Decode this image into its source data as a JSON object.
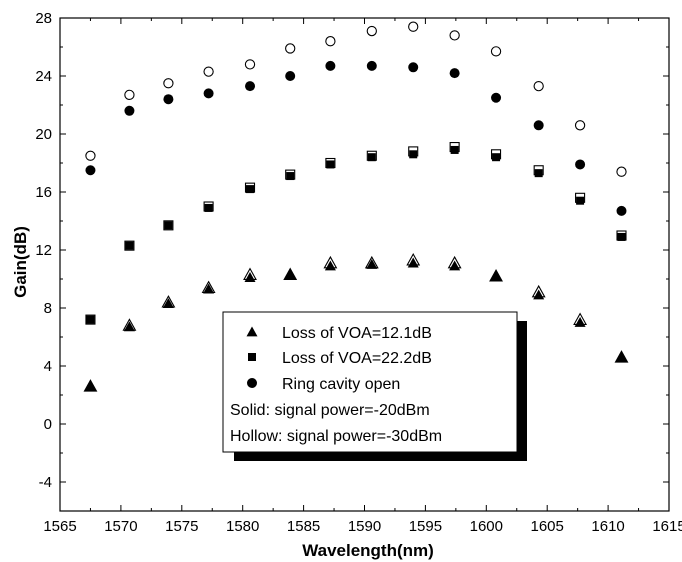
{
  "chart_data": {
    "type": "scatter",
    "xlabel": "Wavelength(nm)",
    "ylabel": "Gain(dB)",
    "xlim": [
      1565,
      1615
    ],
    "ylim": [
      -6,
      28
    ],
    "xticks": [
      1565,
      1570,
      1575,
      1580,
      1585,
      1590,
      1595,
      1600,
      1605,
      1610,
      1615
    ],
    "yticks": [
      -4,
      0,
      4,
      8,
      12,
      16,
      20,
      24,
      28
    ],
    "grid": false,
    "legend_position": "lower-center",
    "x": [
      1567.5,
      1570.7,
      1573.9,
      1577.2,
      1580.6,
      1583.9,
      1587.2,
      1590.6,
      1594.0,
      1597.4,
      1600.8,
      1604.3,
      1607.7,
      1611.1
    ],
    "series": [
      {
        "marker": "triangle",
        "fill": "solid",
        "values": [
          2.6,
          6.7,
          8.3,
          9.3,
          10.1,
          10.3,
          10.9,
          11.0,
          11.1,
          10.9,
          10.2,
          8.9,
          7.0,
          4.6
        ]
      },
      {
        "marker": "triangle",
        "fill": "hollow",
        "values": [
          2.6,
          6.8,
          8.4,
          9.4,
          10.3,
          10.3,
          11.1,
          11.1,
          11.3,
          11.1,
          10.2,
          9.1,
          7.2,
          4.6
        ]
      },
      {
        "marker": "square",
        "fill": "solid",
        "values": [
          7.2,
          12.3,
          13.7,
          14.9,
          16.2,
          17.1,
          17.9,
          18.4,
          18.6,
          18.9,
          18.4,
          17.3,
          15.4,
          12.9
        ]
      },
      {
        "marker": "square",
        "fill": "hollow",
        "values": [
          7.2,
          12.3,
          13.7,
          15.0,
          16.3,
          17.2,
          18.0,
          18.5,
          18.8,
          19.1,
          18.6,
          17.5,
          15.6,
          13.0
        ]
      },
      {
        "marker": "circle",
        "fill": "solid",
        "values": [
          17.5,
          21.6,
          22.4,
          22.8,
          23.3,
          24.0,
          24.7,
          24.7,
          24.6,
          24.2,
          22.5,
          20.6,
          17.9,
          14.7
        ]
      },
      {
        "marker": "circle",
        "fill": "hollow",
        "values": [
          18.5,
          22.7,
          23.5,
          24.3,
          24.8,
          25.9,
          26.4,
          27.1,
          27.4,
          26.8,
          25.7,
          23.3,
          20.6,
          17.4
        ]
      }
    ],
    "legend": {
      "entries": [
        {
          "marker": "triangle",
          "label": "Loss of VOA=12.1dB"
        },
        {
          "marker": "square",
          "label": "Loss of VOA=22.2dB"
        },
        {
          "marker": "circle",
          "label": "Ring cavity open"
        }
      ],
      "notes": [
        "Solid: signal power=-20dBm",
        "Hollow: signal power=-30dBm"
      ]
    }
  }
}
